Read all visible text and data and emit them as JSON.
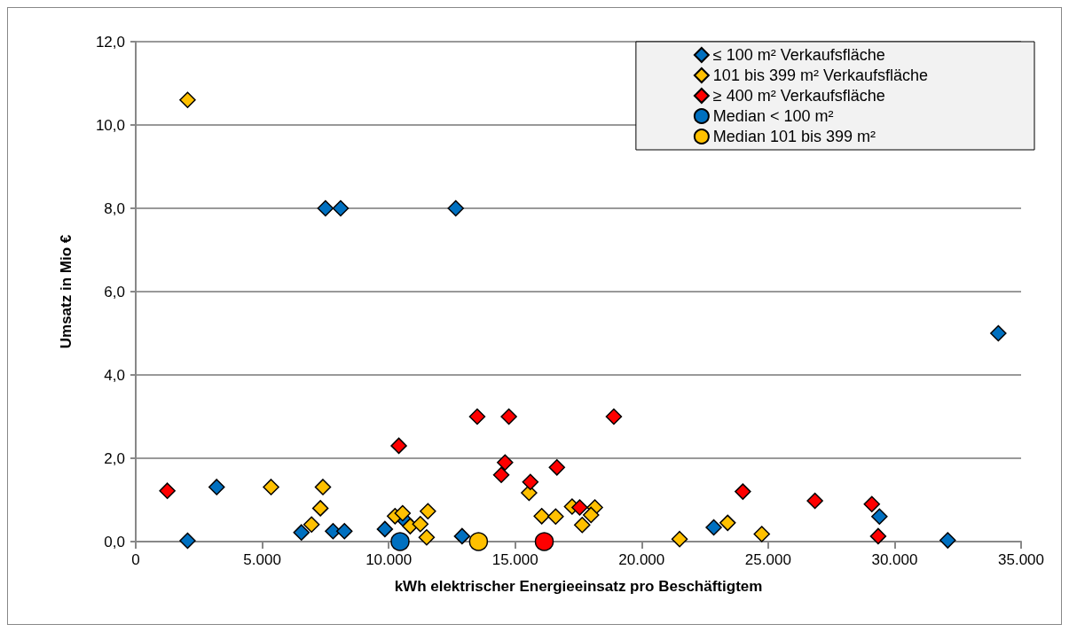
{
  "chart_data": {
    "type": "scatter",
    "xlabel": "kWh elektrischer Energieeinsatz pro Beschäftigtem",
    "ylabel": "Umsatz in Mio €",
    "xlim": [
      0,
      35000
    ],
    "xticks": [
      0,
      {
        "value": 5000,
        "label": "5.000"
      },
      {
        "value": 10000,
        "label": "10.000"
      },
      {
        "value": 15000,
        "label": "15.000"
      },
      {
        "value": 20000,
        "label": "20.000"
      },
      {
        "value": 25000,
        "label": "25.000"
      },
      {
        "value": 30000,
        "label": "30.000"
      },
      {
        "value": 35000,
        "label": "35.000"
      }
    ],
    "ylim": [
      0,
      12
    ],
    "yticks": [
      {
        "value": 0,
        "label": "0,0"
      },
      {
        "value": 2,
        "label": "2,0"
      },
      {
        "value": 4,
        "label": "4,0"
      },
      {
        "value": 6,
        "label": "6,0"
      },
      {
        "value": 8,
        "label": "8,0"
      },
      {
        "value": 10,
        "label": "10,0"
      },
      {
        "value": 12,
        "label": "12,0"
      }
    ],
    "grid": "y",
    "legend": "top right",
    "series": [
      {
        "name": "≤ 100 m² Verkaufsfläche",
        "color": "#0070c0",
        "marker": "diamond",
        "x": [
          2050,
          3200,
          6550,
          7800,
          8250,
          9850,
          10650,
          12900,
          22850,
          29400,
          32100,
          7500,
          8100,
          12650,
          34100
        ],
        "values": [
          0.02,
          1.31,
          0.22,
          0.25,
          0.25,
          0.3,
          0.5,
          0.13,
          0.34,
          0.6,
          0.03,
          8.0,
          8.0,
          8.0,
          5.0
        ]
      },
      {
        "name": "101 bis 399 m² Verkaufsfläche",
        "color": "#ffc000",
        "marker": "diamond",
        "x": [
          2050,
          5350,
          7400,
          7300,
          6950,
          10250,
          10550,
          10850,
          11250,
          11550,
          11500,
          15550,
          16050,
          16600,
          17250,
          18150,
          18000,
          17650,
          21500,
          23400,
          24750
        ],
        "values": [
          10.6,
          1.31,
          1.31,
          0.8,
          0.41,
          0.61,
          0.68,
          0.37,
          0.42,
          0.73,
          0.1,
          1.17,
          0.61,
          0.6,
          0.84,
          0.82,
          0.64,
          0.4,
          0.06,
          0.45,
          0.18
        ]
      },
      {
        "name": "≥ 400 m² Verkaufsfläche",
        "color": "#ff0000",
        "marker": "diamond",
        "x": [
          1250,
          10400,
          13500,
          14750,
          18900,
          14600,
          14450,
          16650,
          15600,
          17550,
          24000,
          26850,
          29100,
          29350
        ],
        "values": [
          1.22,
          2.3,
          3.0,
          3.0,
          3.0,
          1.9,
          1.6,
          1.78,
          1.43,
          0.82,
          1.2,
          0.98,
          0.9,
          0.13
        ]
      },
      {
        "name": "Median < 100 m²",
        "color": "#0070c0",
        "marker": "circle",
        "x": [
          10450
        ],
        "values": [
          0.0
        ]
      },
      {
        "name": "Median 101 bis 399 m²",
        "color": "#ffc000",
        "marker": "circle",
        "x": [
          13550
        ],
        "values": [
          0.0
        ]
      },
      {
        "color": "#ff0000",
        "marker": "circle",
        "x": [
          16150
        ],
        "values": [
          0.0
        ]
      }
    ]
  }
}
